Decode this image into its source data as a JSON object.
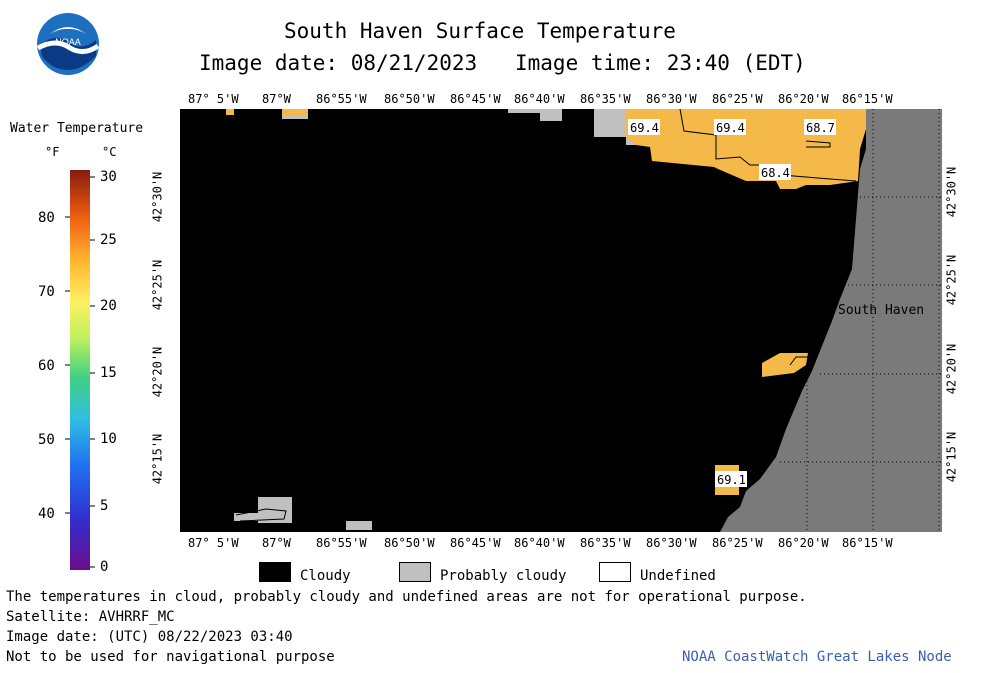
{
  "header": {
    "title": "South Haven Surface Temperature",
    "image_date_label": "Image date: 08/21/2023",
    "image_time_label": "Image time: 23:40 (EDT)"
  },
  "logo": {
    "text": "NOAA"
  },
  "legend": {
    "title": "Water Temperature",
    "unit_f": "°F",
    "unit_c": "°C",
    "f_ticks": [
      "40",
      "50",
      "60",
      "70",
      "80"
    ],
    "c_ticks": [
      "0",
      "5",
      "10",
      "15",
      "20",
      "25",
      "30"
    ]
  },
  "axes": {
    "lon_labels": [
      "87° 5'W",
      "87°W",
      "86°55'W",
      "86°50'W",
      "86°45'W",
      "86°40'W",
      "86°35'W",
      "86°30'W",
      "86°25'W",
      "86°20'W",
      "86°15'W"
    ],
    "lat_labels": [
      "42°30'N",
      "42°25'N",
      "42°20'N",
      "42°15'N"
    ]
  },
  "map": {
    "place_name": "South Haven",
    "temperature_labels": [
      "69.4",
      "69.4",
      "68.7",
      "68.4",
      "69.1"
    ]
  },
  "key": {
    "cloudy": "Cloudy",
    "probably_cloudy": "Probably cloudy",
    "undefined": "Undefined"
  },
  "footer": {
    "disclaimer": "The temperatures in cloud, probably cloudy and undefined areas are not for operational purpose.",
    "satellite": "Satellite: AVHRRF_MC",
    "utc_date": "Image date: (UTC) 08/22/2023  03:40",
    "nav_note": "Not to be used for navigational purpose",
    "credit": "NOAA CoastWatch Great Lakes Node"
  },
  "colors": {
    "cloudy": "#000000",
    "probably_cloudy": "#c0c0c0",
    "land": "#7a7a7a",
    "water_warm": "#f5b94a",
    "credit": "#3a5fb0"
  }
}
